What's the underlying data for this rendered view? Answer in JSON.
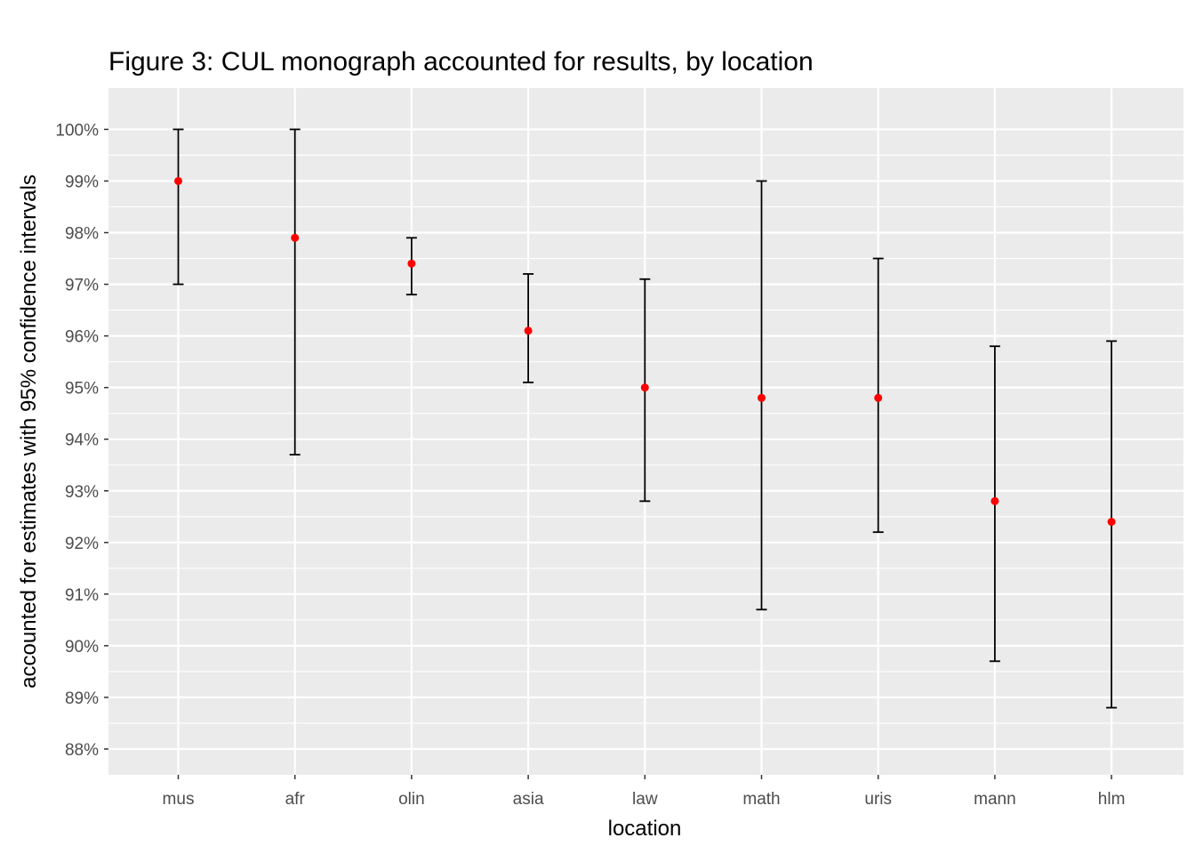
{
  "chart_data": {
    "type": "errorbar",
    "title": "Figure 3: CUL monograph accounted for results, by location",
    "xlabel": "location",
    "ylabel": "accounted for estimates with 95% confidence intervals",
    "categories": [
      "mus",
      "afr",
      "olin",
      "asia",
      "law",
      "math",
      "uris",
      "mann",
      "hlm"
    ],
    "estimate": [
      99.0,
      97.9,
      97.4,
      96.1,
      95.0,
      94.8,
      94.8,
      92.8,
      92.4
    ],
    "ci_lower": [
      97.0,
      93.7,
      96.8,
      95.1,
      92.8,
      90.7,
      92.2,
      89.7,
      88.8
    ],
    "ci_upper": [
      100.0,
      100.0,
      97.9,
      97.2,
      97.1,
      99.0,
      97.5,
      95.8,
      95.9
    ],
    "yticks": [
      88,
      89,
      90,
      91,
      92,
      93,
      94,
      95,
      96,
      97,
      98,
      99,
      100
    ],
    "ytick_labels": [
      "88%",
      "89%",
      "90%",
      "91%",
      "92%",
      "93%",
      "94%",
      "95%",
      "96%",
      "97%",
      "98%",
      "99%",
      "100%"
    ],
    "ylim": [
      87.5,
      100.8
    ],
    "grid": true,
    "point_color": "#ff0000",
    "errorbar_color": "#000000",
    "panel_background": "#ebebeb",
    "gridline_color": "#ffffff"
  }
}
